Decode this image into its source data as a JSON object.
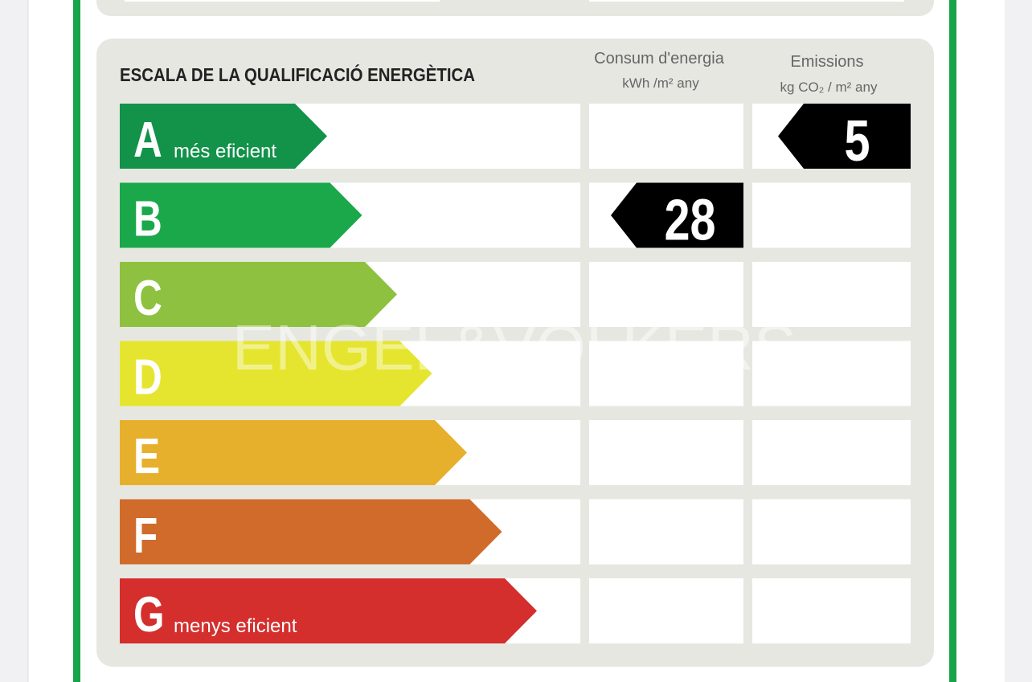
{
  "header": {
    "title": "ESCALA DE LA QUALIFICACIÓ ENERGÈTICA",
    "consumption_title": "Consum d'energia",
    "consumption_unit": "kWh /m² any",
    "emissions_title": "Emissions",
    "emissions_unit": "kg CO₂ / m² any"
  },
  "watermark": "ENGEL&VÖLKERS",
  "classes": [
    {
      "letter": "A",
      "label": "més eficient",
      "color": "#13924a",
      "emissions": 5
    },
    {
      "letter": "B",
      "color": "#1aa84a",
      "consumption": 28
    },
    {
      "letter": "C",
      "color": "#8ec13f"
    },
    {
      "letter": "D",
      "color": "#e5e52f"
    },
    {
      "letter": "E",
      "color": "#e7b02c"
    },
    {
      "letter": "F",
      "color": "#d06b2b"
    },
    {
      "letter": "G",
      "label": "menys eficient",
      "color": "#d42e2d"
    }
  ]
}
